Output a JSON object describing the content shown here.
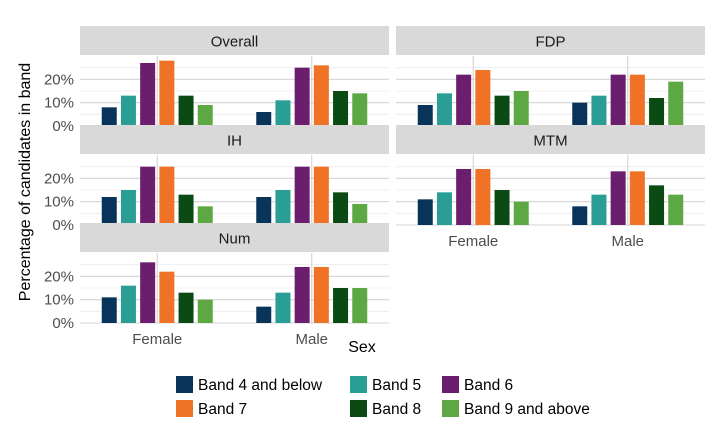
{
  "chart_data": {
    "type": "bar",
    "facet_type": "faceted grouped bar",
    "xlabel": "Sex",
    "ylabel": "Percentage of candidates in band",
    "categories": [
      "Female",
      "Male"
    ],
    "ylim": [
      0,
      30
    ],
    "y_ticks": [
      0,
      10,
      20
    ],
    "y_tick_labels": [
      "0%",
      "10%",
      "20%"
    ],
    "grid": true,
    "legend_position": "bottom",
    "bands": [
      {
        "name": "Band 4 and below",
        "color": "#08345a"
      },
      {
        "name": "Band 5",
        "color": "#2a9d95"
      },
      {
        "name": "Band 6",
        "color": "#6b1d6e"
      },
      {
        "name": "Band 7",
        "color": "#ef7226"
      },
      {
        "name": "Band 8",
        "color": "#0c4a14"
      },
      {
        "name": "Band 9 and above",
        "color": "#5ea844"
      }
    ],
    "facets": [
      {
        "name": "Overall",
        "values": {
          "Female": [
            8,
            13,
            27,
            28,
            13,
            9
          ],
          "Male": [
            6,
            11,
            25,
            26,
            15,
            14
          ]
        }
      },
      {
        "name": "FDP",
        "values": {
          "Female": [
            9,
            14,
            22,
            24,
            13,
            15
          ],
          "Male": [
            10,
            13,
            22,
            22,
            12,
            19
          ]
        }
      },
      {
        "name": "IH",
        "values": {
          "Female": [
            12,
            15,
            25,
            25,
            13,
            8
          ],
          "Male": [
            12,
            15,
            25,
            25,
            14,
            9
          ]
        }
      },
      {
        "name": "MTM",
        "values": {
          "Female": [
            11,
            14,
            24,
            24,
            15,
            10
          ],
          "Male": [
            8,
            13,
            23,
            23,
            17,
            13
          ]
        }
      },
      {
        "name": "Num",
        "values": {
          "Female": [
            11,
            16,
            26,
            22,
            13,
            10
          ],
          "Male": [
            7,
            13,
            24,
            24,
            15,
            15
          ]
        }
      }
    ]
  }
}
